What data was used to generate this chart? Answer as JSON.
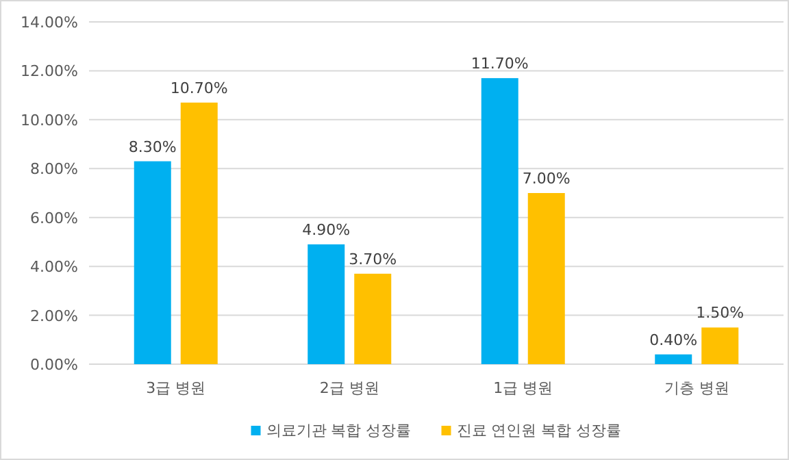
{
  "chart_data": {
    "type": "bar",
    "categories": [
      "3급 병원",
      "2급 병원",
      "1급 병원",
      "기층 병원"
    ],
    "series": [
      {
        "name": "의료기관 복합 성장률",
        "color": "#00b0f0",
        "values": [
          8.3,
          4.9,
          11.7,
          0.4
        ],
        "value_labels": [
          "8.30%",
          "4.90%",
          "11.70%",
          "0.40%"
        ]
      },
      {
        "name": "진료 연인원 복합 성장률",
        "color": "#ffc000",
        "values": [
          10.7,
          3.7,
          7.0,
          1.5
        ],
        "value_labels": [
          "10.70%",
          "3.70%",
          "7.00%",
          "1.50%"
        ]
      }
    ],
    "ylim": [
      0,
      14
    ],
    "yticks": [
      {
        "value": 0,
        "label": "0.00%"
      },
      {
        "value": 2,
        "label": "2.00%"
      },
      {
        "value": 4,
        "label": "4.00%"
      },
      {
        "value": 6,
        "label": "6.00%"
      },
      {
        "value": 8,
        "label": "8.00%"
      },
      {
        "value": 10,
        "label": "10.00%"
      },
      {
        "value": 12,
        "label": "12.00%"
      },
      {
        "value": 14,
        "label": "14.00%"
      }
    ],
    "grid": "y",
    "legend": "bottom"
  }
}
